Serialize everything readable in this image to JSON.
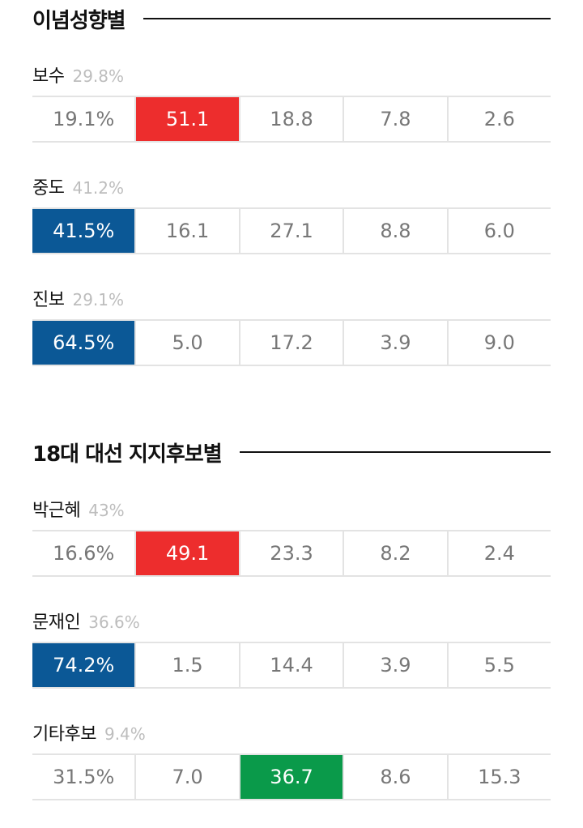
{
  "sections": [
    {
      "title": "이념성향별",
      "groups": [
        {
          "name": "보수",
          "share": "29.8%",
          "values": [
            "19.1%",
            "51.1",
            "18.8",
            "7.8",
            "2.6"
          ],
          "highlight_index": 1,
          "highlight_color": "#ed2d2d"
        },
        {
          "name": "중도",
          "share": "41.2%",
          "values": [
            "41.5%",
            "16.1",
            "27.1",
            "8.8",
            "6.0"
          ],
          "highlight_index": 0,
          "highlight_color": "#0b5896"
        },
        {
          "name": "진보",
          "share": "29.1%",
          "values": [
            "64.5%",
            "5.0",
            "17.2",
            "3.9",
            "9.0"
          ],
          "highlight_index": 0,
          "highlight_color": "#0b5896"
        }
      ]
    },
    {
      "title": "18대 대선 지지후보별",
      "groups": [
        {
          "name": "박근혜",
          "share": "43%",
          "values": [
            "16.6%",
            "49.1",
            "23.3",
            "8.2",
            "2.4"
          ],
          "highlight_index": 1,
          "highlight_color": "#ed2d2d"
        },
        {
          "name": "문재인",
          "share": "36.6%",
          "values": [
            "74.2%",
            "1.5",
            "14.4",
            "3.9",
            "5.5"
          ],
          "highlight_index": 0,
          "highlight_color": "#0b5896"
        },
        {
          "name": "기타후보",
          "share": "9.4%",
          "values": [
            "31.5%",
            "7.0",
            "36.7",
            "8.6",
            "15.3"
          ],
          "highlight_index": 2,
          "highlight_color": "#0a9a4a"
        }
      ]
    }
  ],
  "chart_data": [
    {
      "type": "table",
      "title": "이념성향별",
      "rows": [
        {
          "label": "보수",
          "share": 29.8,
          "values": [
            19.1,
            51.1,
            18.8,
            7.8,
            2.6
          ]
        },
        {
          "label": "중도",
          "share": 41.2,
          "values": [
            41.5,
            16.1,
            27.1,
            8.8,
            6.0
          ]
        },
        {
          "label": "진보",
          "share": 29.1,
          "values": [
            64.5,
            5.0,
            17.2,
            3.9,
            9.0
          ]
        }
      ]
    },
    {
      "type": "table",
      "title": "18대 대선 지지후보별",
      "rows": [
        {
          "label": "박근혜",
          "share": 43,
          "values": [
            16.6,
            49.1,
            23.3,
            8.2,
            2.4
          ]
        },
        {
          "label": "문재인",
          "share": 36.6,
          "values": [
            74.2,
            1.5,
            14.4,
            3.9,
            5.5
          ]
        },
        {
          "label": "기타후보",
          "share": 9.4,
          "values": [
            31.5,
            7.0,
            36.7,
            8.6,
            15.3
          ]
        }
      ]
    }
  ]
}
